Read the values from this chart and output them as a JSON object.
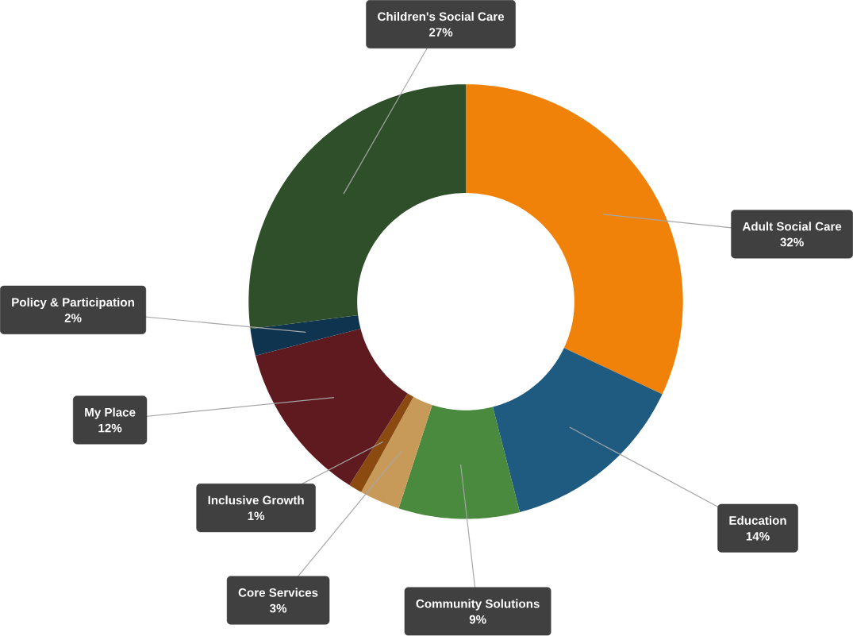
{
  "chart_data": {
    "type": "donut",
    "categories": [
      "Adult Social Care",
      "Education",
      "Community Solutions",
      "Core Services",
      "Inclusive Growth",
      "My Place",
      "Policy & Participation",
      "Children's Social Care"
    ],
    "values": [
      32,
      14,
      9,
      3,
      1,
      12,
      2,
      27
    ],
    "value_labels": [
      "32%",
      "14%",
      "9%",
      "3%",
      "1%",
      "12%",
      "2%",
      "27%"
    ],
    "colors": [
      "#f0820a",
      "#1f5a80",
      "#4a8a3e",
      "#c89a5a",
      "#8b4a10",
      "#5e1a1e",
      "#0f3450",
      "#2f4f2a"
    ]
  }
}
